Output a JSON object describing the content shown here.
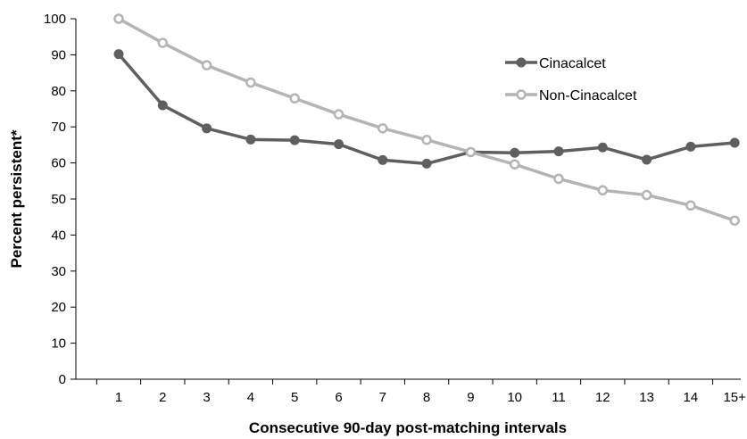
{
  "chart_data": {
    "type": "line",
    "title": "",
    "xlabel": "Consecutive 90-day post-matching intervals",
    "ylabel": "Percent persistent*",
    "categories": [
      "1",
      "2",
      "3",
      "4",
      "5",
      "6",
      "7",
      "8",
      "9",
      "10",
      "11",
      "12",
      "13",
      "14",
      "15+"
    ],
    "ylim": [
      0,
      100
    ],
    "yticks": [
      0,
      10,
      20,
      30,
      40,
      50,
      60,
      70,
      80,
      90,
      100
    ],
    "grid": false,
    "legend_position": "top-right",
    "series": [
      {
        "name": "Cinacalcet",
        "color": "#5f5f5f",
        "marker": "filled-circle",
        "values": [
          90.2,
          76.0,
          69.6,
          66.5,
          66.3,
          65.2,
          60.8,
          59.8,
          63.0,
          62.8,
          63.2,
          64.3,
          60.9,
          64.5,
          65.6
        ]
      },
      {
        "name": "Non-Cinacalcet",
        "color": "#b4b4b4",
        "marker": "open-circle",
        "values": [
          100.0,
          93.3,
          87.1,
          82.3,
          77.9,
          73.5,
          69.6,
          66.4,
          63.0,
          59.6,
          55.6,
          52.4,
          51.1,
          48.2,
          44.0
        ]
      }
    ]
  }
}
